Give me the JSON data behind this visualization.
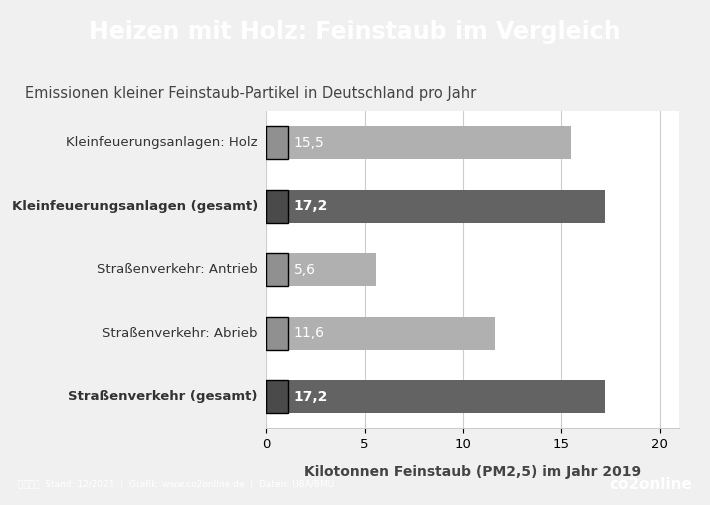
{
  "title": "Heizen mit Holz: Feinstaub im Vergleich",
  "subtitle": "Emissionen kleiner Feinstaub-Partikel in Deutschland pro Jahr",
  "xlabel": "Kilotonnen Feinstaub (PM2,5) im Jahr 2019",
  "categories": [
    "Kleinfeuerungsanlagen: Holz",
    "Kleinfeuerungsanlagen (gesamt)",
    "Straßenverkehr: Antrieb",
    "Straßenverkehr: Abrieb",
    "Straßenverkehr (gesamt)"
  ],
  "values": [
    15.5,
    17.2,
    5.6,
    11.6,
    17.2
  ],
  "bold_flags": [
    false,
    true,
    false,
    false,
    true
  ],
  "bar_colors": [
    "#b0b0b0",
    "#636363",
    "#b0b0b0",
    "#b0b0b0",
    "#636363"
  ],
  "icon_bg_colors": [
    "#909090",
    "#4a4a4a",
    "#909090",
    "#909090",
    "#4a4a4a"
  ],
  "value_labels": [
    "15,5",
    "17,2",
    "5,6",
    "11,6",
    "17,2"
  ],
  "xlim": [
    0,
    21
  ],
  "xticks": [
    0,
    5,
    10,
    15,
    20
  ],
  "title_bg_color": "#3b9dab",
  "footer_bg_color": "#3b9dab",
  "right_border_color": "#3b9dab",
  "chart_bg_color": "#f0f0f0",
  "plot_bg_color": "#ffffff",
  "title_color": "#ffffff",
  "subtitle_color": "#444444",
  "grid_color": "#cccccc",
  "bar_height": 0.52,
  "title_fontsize": 17,
  "subtitle_fontsize": 10.5,
  "label_fontsize": 9.5,
  "value_fontsize": 10,
  "xlabel_fontsize": 10
}
